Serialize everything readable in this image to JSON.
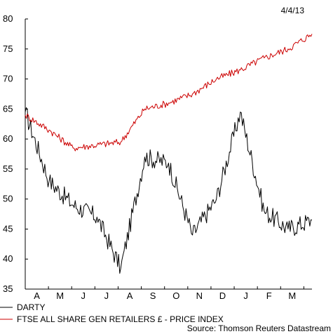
{
  "chart_data": {
    "type": "line",
    "date_label": "4/4/13",
    "source": "Source: Thomson Reuters Datastream",
    "ylim": [
      35,
      80
    ],
    "yticks": [
      35,
      40,
      45,
      50,
      55,
      60,
      65,
      70,
      75,
      80
    ],
    "x_tick_labels": [
      "A",
      "M",
      "J",
      "J",
      "A",
      "S",
      "O",
      "N",
      "D",
      "J",
      "F",
      "M"
    ],
    "grid": false,
    "legend_placement": "bottom-left",
    "x": [
      "2012-04",
      "2012-05",
      "2012-06",
      "2012-07",
      "2012-08",
      "2012-09",
      "2012-10",
      "2012-11",
      "2012-12",
      "2013-01",
      "2013-02",
      "2013-03",
      "2013-04"
    ],
    "series": [
      {
        "name": "DARTY",
        "color": "#000000",
        "values": [
          64.5,
          53,
          49,
          47,
          38.5,
          57,
          56,
          44,
          50,
          64.5,
          48,
          45,
          46.5
        ]
      },
      {
        "name": "FTSE ALL SHARE GEN RETAILERS £ - PRICE INDEX",
        "color": "#cc0000",
        "values": [
          64,
          61.5,
          58.5,
          59,
          59.5,
          65,
          66,
          67.5,
          70,
          71.5,
          73.5,
          75,
          77.5
        ]
      }
    ]
  }
}
